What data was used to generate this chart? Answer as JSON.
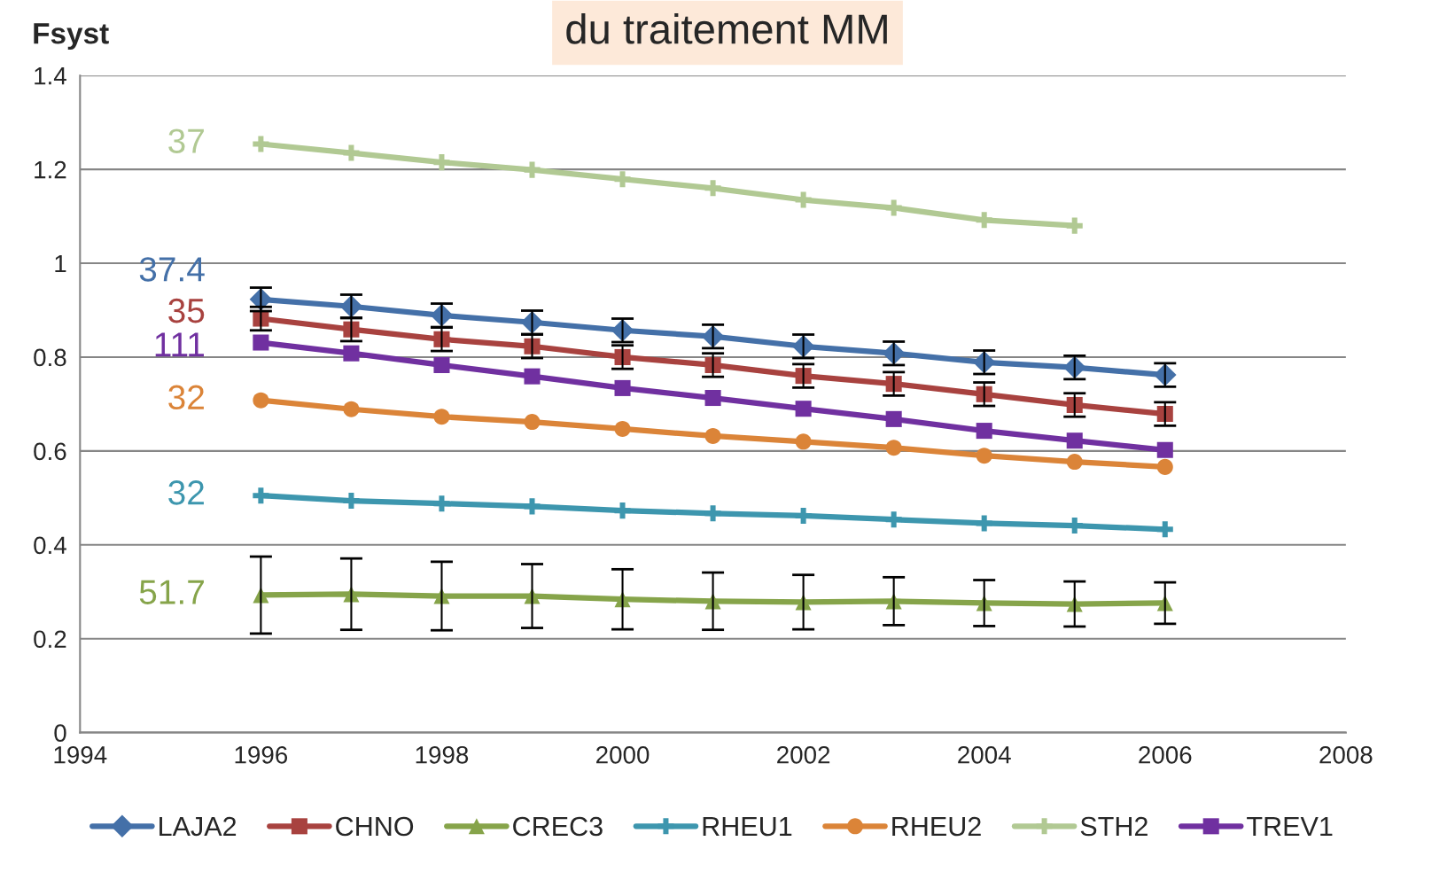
{
  "chart_data": {
    "type": "line",
    "title": "du traitement MM",
    "ylabel": "Fsyst",
    "x": [
      1996,
      1997,
      1998,
      1999,
      2000,
      2001,
      2002,
      2003,
      2004,
      2005,
      2006
    ],
    "xlim": [
      1994,
      2008
    ],
    "xticks": [
      1994,
      1996,
      1998,
      2000,
      2002,
      2004,
      2006,
      2008
    ],
    "ylim": [
      0,
      1.4
    ],
    "yticks": [
      0,
      0.2,
      0.4,
      0.6,
      0.8,
      1,
      1.2,
      1.4
    ],
    "grid": "y",
    "legend": "bottom",
    "series": [
      {
        "name": "LAJA2",
        "color": "#4470a8",
        "marker": "diamond",
        "values": [
          0.923,
          0.908,
          0.889,
          0.874,
          0.857,
          0.844,
          0.823,
          0.808,
          0.789,
          0.778,
          0.762
        ],
        "errors": [
          0.025,
          0.025,
          0.025,
          0.025,
          0.025,
          0.025,
          0.025,
          0.025,
          0.025,
          0.025,
          0.025
        ]
      },
      {
        "name": "CHNO",
        "color": "#a8423f",
        "marker": "square",
        "values": [
          0.882,
          0.859,
          0.838,
          0.823,
          0.8,
          0.783,
          0.76,
          0.743,
          0.721,
          0.698,
          0.679
        ],
        "errors": [
          0.025,
          0.025,
          0.025,
          0.025,
          0.025,
          0.025,
          0.025,
          0.025,
          0.025,
          0.025,
          0.025
        ]
      },
      {
        "name": "CREC3",
        "color": "#86a44a",
        "marker": "triangle",
        "values": [
          0.293,
          0.295,
          0.291,
          0.291,
          0.284,
          0.28,
          0.278,
          0.28,
          0.276,
          0.274,
          0.276
        ],
        "errors": [
          0.082,
          0.076,
          0.073,
          0.068,
          0.064,
          0.061,
          0.058,
          0.051,
          0.049,
          0.048,
          0.044
        ]
      },
      {
        "name": "RHEU1",
        "color": "#3d96ae",
        "marker": "cross",
        "values": [
          0.505,
          0.494,
          0.488,
          0.482,
          0.473,
          0.467,
          0.462,
          0.454,
          0.446,
          0.441,
          0.433
        ]
      },
      {
        "name": "RHEU2",
        "color": "#db8438",
        "marker": "circle",
        "values": [
          0.708,
          0.689,
          0.673,
          0.662,
          0.647,
          0.632,
          0.62,
          0.607,
          0.59,
          0.577,
          0.566
        ]
      },
      {
        "name": "STH2",
        "color": "#b1c993",
        "marker": "cross",
        "values": [
          1.254,
          1.235,
          1.215,
          1.199,
          1.179,
          1.16,
          1.135,
          1.118,
          1.092,
          1.08,
          null
        ]
      },
      {
        "name": "TREV1",
        "color": "#7030a0",
        "marker": "square",
        "values": [
          0.831,
          0.808,
          0.783,
          0.759,
          0.734,
          0.713,
          0.69,
          0.668,
          0.643,
          0.622,
          0.602
        ]
      }
    ],
    "annotations": [
      "37",
      "37.4",
      "35",
      "111",
      "32",
      "32",
      "51.7"
    ]
  }
}
